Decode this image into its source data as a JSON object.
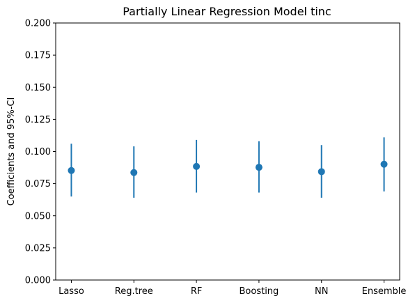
{
  "chart_data": {
    "type": "scatter",
    "title": "Partially Linear Regression Model tinc",
    "xlabel": "",
    "ylabel": "Coefficients and 95%-CI",
    "ylim": [
      0.0,
      0.2
    ],
    "categories": [
      "Lasso",
      "Reg.tree",
      "RF",
      "Boosting",
      "NN",
      "Ensemble"
    ],
    "yticks": [
      "0.000",
      "0.025",
      "0.050",
      "0.075",
      "0.100",
      "0.125",
      "0.150",
      "0.175",
      "0.200"
    ],
    "grid": false,
    "series": [
      {
        "values": [
          0.0852,
          0.0836,
          0.0884,
          0.0877,
          0.0843,
          0.0901
        ],
        "ci_lower": [
          0.065,
          0.064,
          0.068,
          0.068,
          0.064,
          0.069
        ],
        "ci_upper": [
          0.106,
          0.104,
          0.109,
          0.108,
          0.105,
          0.111
        ],
        "color": "#1f77b4"
      }
    ]
  }
}
